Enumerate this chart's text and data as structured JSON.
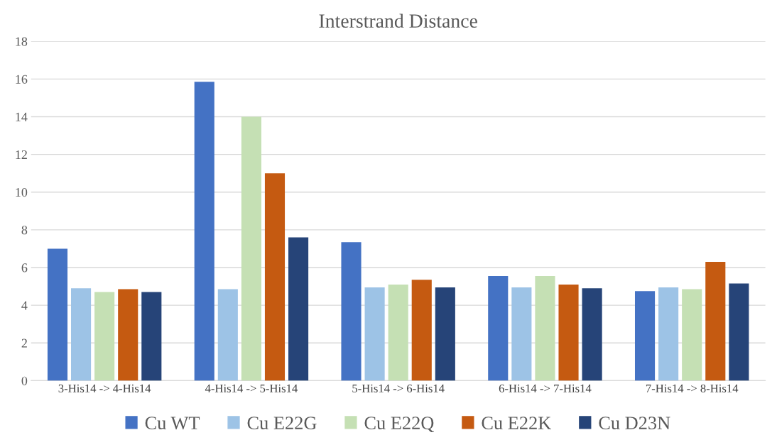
{
  "chart_data": {
    "type": "bar",
    "title": "Interstrand Distance",
    "categories": [
      "3-His14 -> 4-His14",
      "4-His14 -> 5-His14",
      "5-His14 -> 6-His14",
      "6-His14 -> 7-His14",
      "7-His14 -> 8-His14"
    ],
    "series": [
      {
        "name": "Cu WT",
        "color": "#4472c4",
        "values": [
          7.0,
          15.85,
          7.35,
          5.55,
          4.75
        ]
      },
      {
        "name": "Cu E22G",
        "color": "#9dc3e6",
        "values": [
          4.9,
          4.85,
          4.95,
          4.95,
          4.95
        ]
      },
      {
        "name": "Cu E22Q",
        "color": "#c5e0b4",
        "values": [
          4.7,
          14.0,
          5.1,
          5.55,
          4.85
        ]
      },
      {
        "name": "Cu E22K",
        "color": "#c55a11",
        "values": [
          4.85,
          11.0,
          5.35,
          5.1,
          6.3
        ]
      },
      {
        "name": "Cu D23N",
        "color": "#264478",
        "values": [
          4.7,
          7.6,
          4.95,
          4.9,
          5.15
        ]
      }
    ],
    "ylim": [
      0,
      18
    ],
    "yticks": [
      0,
      2,
      4,
      6,
      8,
      10,
      12,
      14,
      16,
      18
    ],
    "grid": "y",
    "legend": "bottom"
  }
}
